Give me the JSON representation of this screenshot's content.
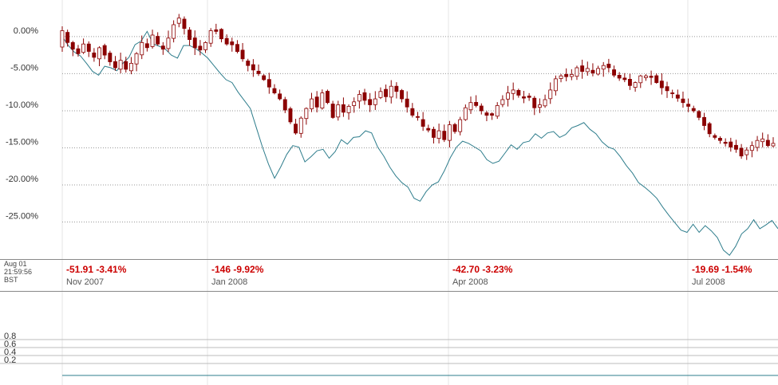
{
  "timestamp": {
    "date": "Aug 01",
    "time": "21:59:56",
    "tz": "BST"
  },
  "colors": {
    "candle": "#8b0000",
    "compare_line": "#2e7d8c",
    "change_text": "#cc0000",
    "grid": "#999999"
  },
  "chart_data": {
    "type": "line",
    "yaxis": {
      "ticks": [
        "0.00%",
        "-5.00%",
        "-10.00%",
        "-15.00%",
        "-20.00%",
        "-25.00%"
      ],
      "ylim": [
        -30,
        3
      ]
    },
    "months": [
      {
        "label": "Nov 2007",
        "change": "-51.91 -3.41%"
      },
      {
        "label": "Jan 2008",
        "change": "-146 -9.92%"
      },
      {
        "label": "Apr 2008",
        "change": "-42.70 -3.23%"
      },
      {
        "label": "Jul 2008",
        "change": "-19.69 -1.54%"
      }
    ],
    "lower_panel": {
      "ticks": [
        "0.8",
        "0.6",
        "0.4",
        "0.2"
      ],
      "ylim": [
        0,
        1
      ]
    },
    "series": [
      {
        "type": "candlestick",
        "values": [
          0.8,
          -0.8,
          -1.7,
          -2.3,
          -1.0,
          -2.0,
          -2.8,
          -1.5,
          -2.5,
          -3.4,
          -4.2,
          -3.2,
          -4.4,
          -3.6,
          -2.3,
          -0.8,
          -1.5,
          0.2,
          -1.0,
          -1.7,
          -0.2,
          1.6,
          2.5,
          1.1,
          -0.4,
          -1.5,
          -1.8,
          -0.8,
          0.8,
          0.7,
          -0.3,
          -1.0,
          -1.1,
          -2.0,
          -3.0,
          -3.9,
          -4.5,
          -5.0,
          -5.8,
          -6.8,
          -7.6,
          -8.4,
          -9.9,
          -11.5,
          -13.0,
          -11.0,
          -9.7,
          -8.4,
          -9.5,
          -7.6,
          -8.9,
          -10.9,
          -9.2,
          -10.2,
          -9.4,
          -8.8,
          -7.8,
          -8.6,
          -9.2,
          -8.4,
          -7.4,
          -8.1,
          -6.7,
          -7.4,
          -8.4,
          -9.5,
          -10.6,
          -10.9,
          -12.1,
          -12.6,
          -13.6,
          -12.7,
          -13.9,
          -11.9,
          -12.8,
          -11.2,
          -9.6,
          -8.9,
          -9.3,
          -10.0,
          -10.6,
          -10.6,
          -9.3,
          -8.5,
          -7.6,
          -7.2,
          -7.9,
          -8.3,
          -8.2,
          -9.6,
          -9.2,
          -8.5,
          -7.2,
          -5.7,
          -5.3,
          -5.4,
          -5.1,
          -4.2,
          -4.7,
          -4.3,
          -4.9,
          -4.3,
          -3.9,
          -4.2,
          -5.2,
          -5.6,
          -5.8,
          -6.6,
          -6.2,
          -5.3,
          -5.3,
          -5.5,
          -6.2,
          -6.9,
          -7.3,
          -7.6,
          -8.3,
          -8.9,
          -9.4,
          -10.0,
          -10.9,
          -12.0,
          -13.1,
          -13.6,
          -14.0,
          -14.4,
          -14.9,
          -15.2,
          -16.1,
          -15.3,
          -14.7,
          -14.0,
          -13.8,
          -14.7,
          -14.4
        ]
      },
      {
        "type": "line",
        "values": [
          0.0,
          -1.2,
          -2.1,
          -2.6,
          -3.6,
          -4.7,
          -5.2,
          -4.0,
          -4.2,
          -4.6,
          -3.6,
          -2.8,
          -1.1,
          -0.6,
          0.7,
          -1.0,
          -1.3,
          -1.7,
          -2.5,
          -2.9,
          -1.2,
          -1.2,
          -1.6,
          -2.2,
          -2.9,
          -3.9,
          -4.9,
          -5.8,
          -6.2,
          -7.5,
          -8.6,
          -9.7,
          -12.3,
          -14.9,
          -17.2,
          -19.1,
          -17.6,
          -15.9,
          -14.7,
          -14.9,
          -16.9,
          -16.2,
          -15.4,
          -15.2,
          -16.4,
          -15.5,
          -13.9,
          -14.5,
          -13.6,
          -13.5,
          -12.7,
          -13.0,
          -14.9,
          -16.1,
          -17.6,
          -18.8,
          -19.7,
          -20.3,
          -21.8,
          -22.2,
          -20.9,
          -20.0,
          -19.6,
          -18.1,
          -16.3,
          -14.9,
          -14.1,
          -14.4,
          -14.9,
          -15.4,
          -16.6,
          -17.1,
          -16.8,
          -15.7,
          -14.6,
          -15.2,
          -14.3,
          -14.1,
          -13.1,
          -13.7,
          -13.0,
          -12.8,
          -13.6,
          -13.2,
          -12.3,
          -12.0,
          -11.6,
          -12.5,
          -13.1,
          -14.2,
          -14.9,
          -15.2,
          -16.2,
          -17.4,
          -18.4,
          -19.7,
          -20.3,
          -21.0,
          -21.8,
          -23.0,
          -24.1,
          -25.1,
          -26.1,
          -26.4,
          -25.3,
          -26.4,
          -25.5,
          -26.2,
          -27.1,
          -28.8,
          -29.5,
          -28.3,
          -26.6,
          -25.9,
          -24.7,
          -25.9,
          -25.4,
          -24.8,
          -25.9
        ]
      }
    ]
  }
}
